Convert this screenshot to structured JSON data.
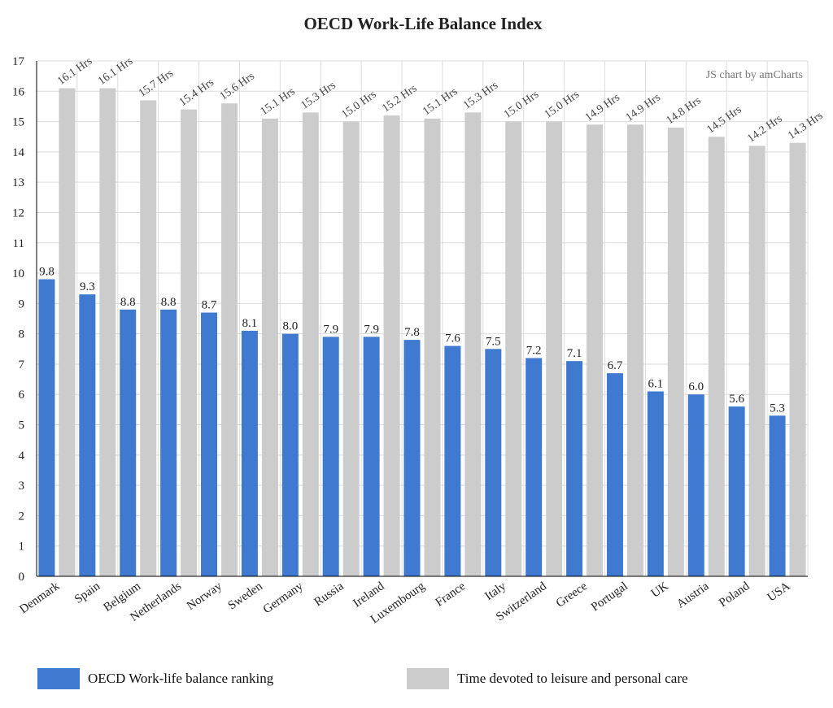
{
  "chart_data": {
    "type": "bar",
    "title": "OECD Work-Life Balance Index",
    "credit": "JS chart by amCharts",
    "categories": [
      "Denmark",
      "Spain",
      "Belgium",
      "Netherlands",
      "Norway",
      "Sweden",
      "Germany",
      "Russia",
      "Ireland",
      "Luxembourg",
      "France",
      "Italy",
      "Switzerland",
      "Greece",
      "Portugal",
      "UK",
      "Austria",
      "Poland",
      "USA"
    ],
    "series": [
      {
        "name": "OECD Work-life balance ranking",
        "color": "#3f7ad0",
        "values": [
          9.8,
          9.3,
          8.8,
          8.8,
          8.7,
          8.1,
          8.0,
          7.9,
          7.9,
          7.8,
          7.6,
          7.5,
          7.2,
          7.1,
          6.7,
          6.1,
          6.0,
          5.6,
          5.3
        ],
        "labels": [
          "9.8",
          "9.3",
          "8.8",
          "8.8",
          "8.7",
          "8.1",
          "8.0",
          "7.9",
          "7.9",
          "7.8",
          "7.6",
          "7.5",
          "7.2",
          "7.1",
          "6.7",
          "6.1",
          "6.0",
          "5.6",
          "5.3"
        ]
      },
      {
        "name": "Time devoted to leisure and personal care",
        "color": "#cccccc",
        "values": [
          16.1,
          16.1,
          15.7,
          15.4,
          15.6,
          15.1,
          15.3,
          15.0,
          15.2,
          15.1,
          15.3,
          15.0,
          15.0,
          14.9,
          14.9,
          14.8,
          14.5,
          14.2,
          14.3
        ],
        "labels": [
          "16.1 Hrs",
          "16.1 Hrs",
          "15.7 Hrs",
          "15.4 Hrs",
          "15.6 Hrs",
          "15.1 Hrs",
          "15.3 Hrs",
          "15.0 Hrs",
          "15.2 Hrs",
          "15.1 Hrs",
          "15.3 Hrs",
          "15.0 Hrs",
          "15.0 Hrs",
          "14.9 Hrs",
          "14.9 Hrs",
          "14.8 Hrs",
          "14.5 Hrs",
          "14.2 Hrs",
          "14.3 Hrs"
        ]
      }
    ],
    "ylim": [
      0,
      17
    ],
    "yticks": [
      "0",
      "1",
      "2",
      "3",
      "4",
      "5",
      "6",
      "7",
      "8",
      "9",
      "10",
      "11",
      "12",
      "13",
      "14",
      "15",
      "16",
      "17"
    ],
    "grid": true,
    "legend_position": "bottom"
  }
}
